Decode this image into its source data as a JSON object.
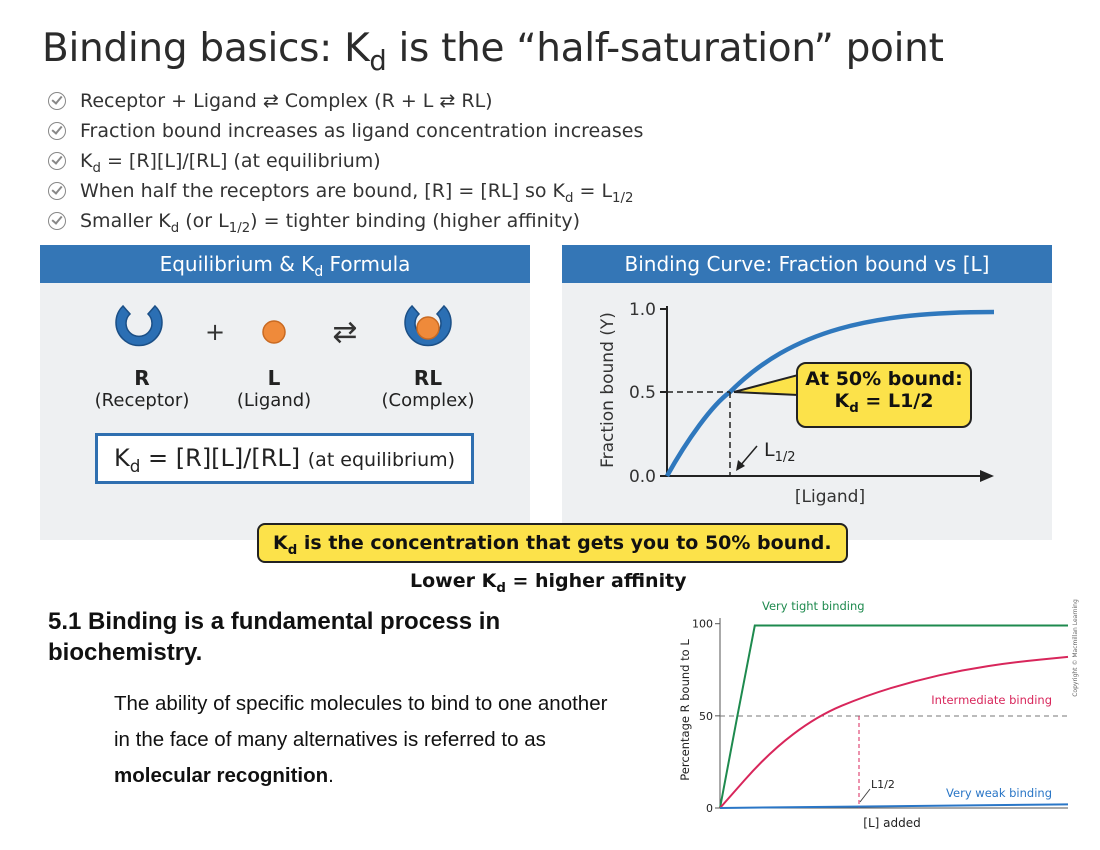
{
  "title": {
    "main": "Binding basics: K",
    "sub": "d",
    "rest": " is the “half-saturation” point"
  },
  "bullets": [
    {
      "t1": "Receptor + Ligand ⇄ Complex (R + L ⇄ RL)",
      "s1": "",
      "t2": "",
      "s2": "",
      "t3": ""
    },
    {
      "t1": "Fraction bound increases as ligand concentration increases",
      "s1": "",
      "t2": "",
      "s2": "",
      "t3": ""
    },
    {
      "t1": "K",
      "s1": "d",
      "t2": " = [R][L]/[RL] (at equilibrium)",
      "s2": "",
      "t3": ""
    },
    {
      "t1": "When half the receptors are bound, [R] = [RL] so K",
      "s1": "d",
      "t2": " = L",
      "s2": "1/2",
      "t3": ""
    },
    {
      "t1": "Smaller K",
      "s1": "d",
      "t2": " (or L",
      "s2": "1/2",
      "t3": ") = tighter binding (higher affinity)"
    }
  ],
  "left_panel": {
    "header_a": "Equilibrium & K",
    "header_sub": "d",
    "header_b": " Formula",
    "plus": "+",
    "arrows": "⇄",
    "species": [
      {
        "symbol": "R",
        "name": "(Receptor)"
      },
      {
        "symbol": "L",
        "name": "(Ligand)"
      },
      {
        "symbol": "RL",
        "name": "(Complex)"
      }
    ],
    "formula_a": "K",
    "formula_sub": "d",
    "formula_b": " = [R][L]/[RL] ",
    "formula_c": "(at equilibrium)"
  },
  "right_panel": {
    "header": "Binding Curve: Fraction bound vs [L]",
    "ylabel": "Fraction bound (Y)",
    "xlabel": "[Ligand]",
    "yticks": [
      "1.0",
      "0.5",
      "0.0"
    ],
    "half_label": "L",
    "half_sub": "1/2",
    "callout_line1": "At 50% bound:",
    "callout_a": "K",
    "callout_sub": "d",
    "callout_b": " = L1/2"
  },
  "highlight": {
    "a": "K",
    "sub": "d",
    "b": " is the concentration that gets you to 50% bound."
  },
  "note": {
    "a": "Lower K",
    "sub": "d",
    "b": " = higher affinity"
  },
  "section": {
    "heading": "5.1 Binding is a fundamental process in biochemistry."
  },
  "paragraph": {
    "text": "The ability of specific molecules to bind to one another in the face of many alternatives is referred to as ",
    "bold": "molecular recognition",
    "end": "."
  },
  "chart_data": {
    "type": "line",
    "title": "",
    "xlabel": "[L] added",
    "ylabel": "Percentage R bound to L",
    "ylim": [
      0,
      100
    ],
    "yticks": [
      0,
      50,
      100
    ],
    "x_marker": "L1/2",
    "copyright": "Copyright © Macmillan Learning",
    "series": [
      {
        "name": "Very tight binding",
        "color": "#1e8a4e",
        "x": [
          0,
          0.5,
          1,
          10
        ],
        "values": [
          0,
          50,
          99,
          99
        ]
      },
      {
        "name": "Intermediate binding",
        "color": "#d8265b",
        "x": [
          0,
          1.4,
          2.8,
          4.2,
          5.6,
          7.0,
          8.4,
          10
        ],
        "values": [
          0,
          30,
          50,
          61,
          69,
          75,
          79,
          82
        ]
      },
      {
        "name": "Very weak binding",
        "color": "#2a76c6",
        "x": [
          0,
          10
        ],
        "values": [
          0,
          2
        ]
      }
    ]
  }
}
